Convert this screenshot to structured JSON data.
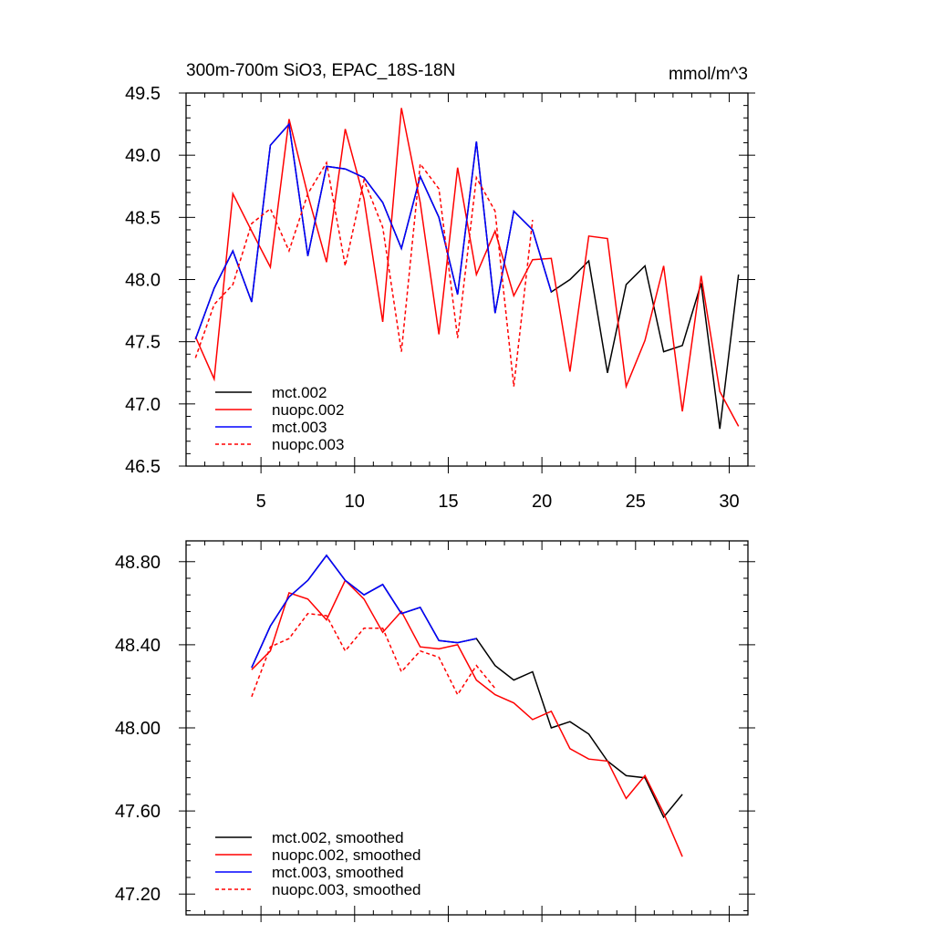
{
  "chart_data": [
    {
      "type": "line",
      "title": "300m-700m SiO3, EPAC_18S-18N",
      "units": "mmol/m^3",
      "xlim": [
        1,
        31
      ],
      "ylim": [
        46.5,
        49.5
      ],
      "xticks": [
        5,
        10,
        15,
        20,
        25,
        30
      ],
      "yticks": [
        46.5,
        47.0,
        47.5,
        48.0,
        48.5,
        49.0,
        49.5
      ],
      "ytick_labels": [
        "46.5",
        "47.0",
        "47.5",
        "48.0",
        "48.5",
        "49.0",
        "49.5"
      ],
      "legend_position": "bottom-left",
      "series": [
        {
          "name": "mct.002",
          "color": "#000000",
          "dash": false,
          "x": [
            1.5,
            2.5,
            3.5,
            4.5,
            5.5,
            6.5,
            7.5,
            8.5,
            9.5,
            10.5,
            11.5,
            12.5,
            13.5,
            14.5,
            15.5,
            16.5,
            17.5,
            18.5,
            19.5,
            20.5,
            21.5,
            22.5,
            23.5,
            24.5,
            25.5,
            26.5,
            27.5,
            28.5,
            29.5,
            30.5
          ],
          "values": [
            47.52,
            47.93,
            48.23,
            47.82,
            49.08,
            49.25,
            48.19,
            48.91,
            48.89,
            48.82,
            48.62,
            48.25,
            48.83,
            48.5,
            47.88,
            49.11,
            47.73,
            48.55,
            48.4,
            47.9,
            48.0,
            48.15,
            47.25,
            47.96,
            48.11,
            47.42,
            47.47,
            47.97,
            46.8,
            48.04
          ]
        },
        {
          "name": "nuopc.002",
          "color": "#ff0000",
          "dash": false,
          "x": [
            1.5,
            2.5,
            3.5,
            4.5,
            5.5,
            6.5,
            7.5,
            8.5,
            9.5,
            10.5,
            11.5,
            12.5,
            13.5,
            14.5,
            15.5,
            16.5,
            17.5,
            18.5,
            19.5,
            20.5,
            21.5,
            22.5,
            23.5,
            24.5,
            25.5,
            26.5,
            27.5,
            28.5,
            29.5,
            30.5
          ],
          "values": [
            47.54,
            47.2,
            48.69,
            48.39,
            48.1,
            49.29,
            48.68,
            48.14,
            49.21,
            48.65,
            47.66,
            49.38,
            48.62,
            47.56,
            48.9,
            48.04,
            48.39,
            47.87,
            48.16,
            48.17,
            47.26,
            48.35,
            48.33,
            47.14,
            47.51,
            48.11,
            46.94,
            48.03,
            47.1,
            46.82
          ]
        },
        {
          "name": "mct.003",
          "color": "#0000ff",
          "dash": false,
          "x": [
            1.5,
            2.5,
            3.5,
            4.5,
            5.5,
            6.5,
            7.5,
            8.5,
            9.5,
            10.5,
            11.5,
            12.5,
            13.5,
            14.5,
            15.5,
            16.5,
            17.5,
            18.5,
            19.5,
            20.5
          ],
          "values": [
            47.52,
            47.93,
            48.23,
            47.82,
            49.08,
            49.25,
            48.19,
            48.91,
            48.89,
            48.82,
            48.62,
            48.25,
            48.83,
            48.5,
            47.88,
            49.11,
            47.73,
            48.55,
            48.4,
            47.9
          ]
        },
        {
          "name": "nuopc.003",
          "color": "#ff0000",
          "dash": true,
          "x": [
            1.5,
            2.5,
            3.5,
            4.5,
            5.5,
            6.5,
            7.5,
            8.5,
            9.5,
            10.5,
            11.5,
            12.5,
            13.5,
            14.5,
            15.5,
            16.5,
            17.5,
            18.5,
            19.5
          ],
          "values": [
            47.37,
            47.8,
            47.96,
            48.45,
            48.57,
            48.23,
            48.69,
            48.94,
            48.11,
            48.8,
            48.42,
            47.42,
            48.93,
            48.73,
            47.53,
            48.82,
            48.55,
            47.14,
            48.48
          ]
        }
      ]
    },
    {
      "type": "line",
      "xlim": [
        1,
        31
      ],
      "ylim": [
        47.1,
        48.9
      ],
      "xticks": [
        5,
        10,
        15,
        20,
        25,
        30
      ],
      "yticks": [
        47.2,
        47.6,
        48.0,
        48.4,
        48.8
      ],
      "ytick_labels": [
        "47.20",
        "47.60",
        "48.00",
        "48.40",
        "48.80"
      ],
      "legend_position": "bottom-left",
      "series": [
        {
          "name": "mct.002, smoothed",
          "color": "#000000",
          "dash": false,
          "x": [
            4.5,
            5.5,
            6.5,
            7.5,
            8.5,
            9.5,
            10.5,
            11.5,
            12.5,
            13.5,
            14.5,
            15.5,
            16.5,
            17.5,
            18.5,
            19.5,
            20.5,
            21.5,
            22.5,
            23.5,
            24.5,
            25.5,
            26.5,
            27.5
          ],
          "values": [
            48.29,
            48.49,
            48.63,
            48.71,
            48.83,
            48.71,
            48.64,
            48.69,
            48.55,
            48.58,
            48.42,
            48.41,
            48.43,
            48.3,
            48.23,
            48.27,
            48.0,
            48.03,
            47.97,
            47.84,
            47.77,
            47.76,
            47.57,
            47.68
          ]
        },
        {
          "name": "nuopc.002, smoothed",
          "color": "#ff0000",
          "dash": false,
          "x": [
            4.5,
            5.5,
            6.5,
            7.5,
            8.5,
            9.5,
            10.5,
            11.5,
            12.5,
            13.5,
            14.5,
            15.5,
            16.5,
            17.5,
            18.5,
            19.5,
            20.5,
            21.5,
            22.5,
            23.5,
            24.5,
            25.5,
            26.5,
            27.5
          ],
          "values": [
            48.28,
            48.37,
            48.65,
            48.62,
            48.52,
            48.71,
            48.62,
            48.46,
            48.56,
            48.39,
            48.38,
            48.4,
            48.23,
            48.16,
            48.12,
            48.04,
            48.08,
            47.9,
            47.85,
            47.84,
            47.66,
            47.77,
            47.59,
            47.38
          ]
        },
        {
          "name": "mct.003, smoothed",
          "color": "#0000ff",
          "dash": false,
          "x": [
            4.5,
            5.5,
            6.5,
            7.5,
            8.5,
            9.5,
            10.5,
            11.5,
            12.5,
            13.5,
            14.5,
            15.5,
            16.5
          ],
          "values": [
            48.29,
            48.49,
            48.63,
            48.71,
            48.83,
            48.71,
            48.64,
            48.69,
            48.55,
            48.58,
            48.42,
            48.41,
            48.43
          ]
        },
        {
          "name": "nuopc.003, smoothed",
          "color": "#ff0000",
          "dash": true,
          "x": [
            4.5,
            5.5,
            6.5,
            7.5,
            8.5,
            9.5,
            10.5,
            11.5,
            12.5,
            13.5,
            14.5,
            15.5,
            16.5,
            17.5
          ],
          "values": [
            48.15,
            48.39,
            48.43,
            48.55,
            48.54,
            48.37,
            48.48,
            48.48,
            48.27,
            48.37,
            48.34,
            48.16,
            48.3,
            48.19
          ]
        }
      ]
    }
  ]
}
